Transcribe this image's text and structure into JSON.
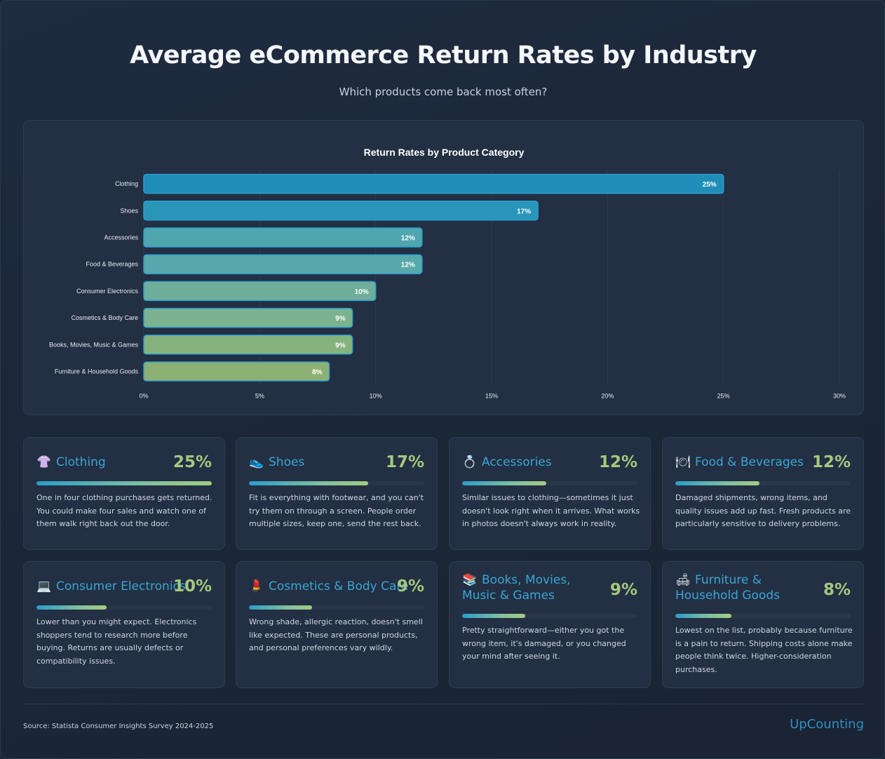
{
  "header": {
    "title": "Average eCommerce Return Rates by Industry",
    "subtitle": "Which products come back most often?"
  },
  "chart_data": {
    "type": "bar",
    "orientation": "horizontal",
    "title": "Return Rates by Product Category",
    "categories": [
      "Clothing",
      "Shoes",
      "Accessories",
      "Food & Beverages",
      "Consumer Electronics",
      "Cosmetics & Body Care",
      "Books, Movies, Music & Games",
      "Furniture & Household Goods"
    ],
    "values": [
      25,
      17,
      12,
      12,
      10,
      9,
      9,
      8
    ],
    "value_labels": [
      "25%",
      "17%",
      "12%",
      "12%",
      "10%",
      "9%",
      "9%",
      "8%"
    ],
    "xlim": [
      0,
      30
    ],
    "xticks": [
      0,
      5,
      10,
      15,
      20,
      25,
      30
    ],
    "xtick_labels": [
      "0%",
      "5%",
      "10%",
      "15%",
      "20%",
      "25%",
      "30%"
    ],
    "grid": true,
    "bar_colors": [
      "#1f8db8",
      "#2895b9",
      "#4fa6ae",
      "#57a9ab",
      "#6fae9a",
      "#7cb28f",
      "#86b27e",
      "#8db174"
    ]
  },
  "cards": [
    {
      "icon": "👚",
      "icon_name": "clothing-icon",
      "name": "Clothing",
      "pct": "25%",
      "value": 25,
      "desc": "One in four clothing purchases gets returned. You could make four sales and watch one of them walk right back out the door."
    },
    {
      "icon": "👟",
      "icon_name": "shoe-icon",
      "name": "Shoes",
      "pct": "17%",
      "value": 17,
      "desc": "Fit is everything with footwear, and you can't try them on through a screen. People order multiple sizes, keep one, send the rest back."
    },
    {
      "icon": "💍",
      "icon_name": "ring-icon",
      "name": "Accessories",
      "pct": "12%",
      "value": 12,
      "desc": "Similar issues to clothing—sometimes it just doesn't look right when it arrives. What works in photos doesn't always work in reality."
    },
    {
      "icon": "🍽",
      "icon_name": "plate-icon",
      "name": "Food & Beverages",
      "pct": "12%",
      "value": 12,
      "desc": "Damaged shipments, wrong items, and quality issues add up fast. Fresh products are particularly sensitive to delivery problems."
    },
    {
      "icon": "💻",
      "icon_name": "laptop-icon",
      "name": "Consumer Electronics",
      "pct": "10%",
      "value": 10,
      "desc": "Lower than you might expect. Electronics shoppers tend to research more before buying. Returns are usually defects or compatibility issues."
    },
    {
      "icon": "💄",
      "icon_name": "lipstick-icon",
      "name": "Cosmetics & Body Care",
      "pct": "9%",
      "value": 9,
      "desc": "Wrong shade, allergic reaction, doesn't smell like expected. These are personal products, and personal preferences vary wildly."
    },
    {
      "icon": "📚",
      "icon_name": "books-icon",
      "name": "Books, Movies, Music & Games",
      "pct": "9%",
      "value": 9,
      "desc": "Pretty straightforward—either you got the wrong item, it's damaged, or you changed your mind after seeing it."
    },
    {
      "icon": "🛋",
      "icon_name": "couch-icon",
      "name": "Furniture & Household Goods",
      "pct": "8%",
      "value": 8,
      "desc": "Lowest on the list, probably because furniture is a pain to return. Shipping costs alone make people think twice. Higher-consideration purchases."
    }
  ],
  "footer": {
    "source": "Source: Statista Consumer Insights Survey 2024-2025",
    "brand": "UpCounting"
  }
}
